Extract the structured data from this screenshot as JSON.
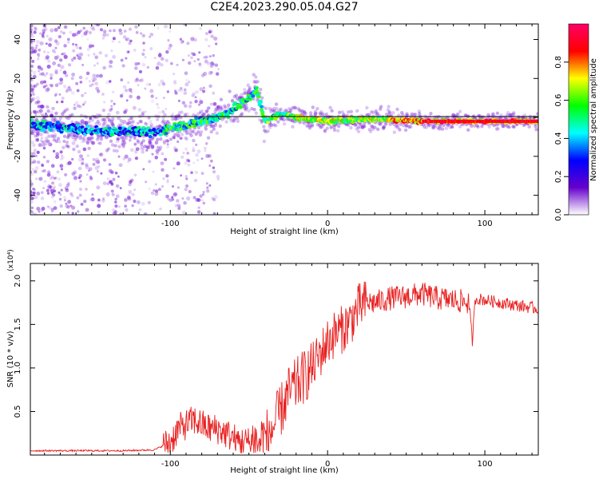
{
  "title": "C2E4.2023.290.05.04.G27",
  "chart_data": [
    {
      "type": "scatter",
      "subtype": "spectrogram",
      "xlabel": "Height of straight line (km)",
      "ylabel": "Frequency (Hz)",
      "xlim": [
        -189,
        134
      ],
      "ylim": [
        -50,
        48
      ],
      "xticks": [
        -100,
        0,
        100
      ],
      "yticks": [
        -40,
        -20,
        0,
        20,
        40
      ],
      "grid": false,
      "colorbar": {
        "label": "Normalized spectral amplitude",
        "range": [
          0,
          1
        ],
        "ticks": [
          "0.0",
          "0.2",
          "0.4",
          "0.6",
          "0.8"
        ],
        "colormap": "rainbow",
        "colors": [
          "#ffffff",
          "#6600cc",
          "#0000ff",
          "#00ffff",
          "#00ff00",
          "#ffff00",
          "#ff0000",
          "#ff0066"
        ]
      },
      "trace": {
        "x": [
          -189,
          -170,
          -150,
          -130,
          -110,
          -100,
          -90,
          -80,
          -70,
          -60,
          -50,
          -45,
          -40,
          -35,
          -30,
          -25,
          -20,
          -10,
          0,
          20,
          40,
          60,
          80,
          100,
          120,
          134
        ],
        "y": [
          -4,
          -5,
          -7,
          -7,
          -8,
          -5,
          -4,
          -2,
          0,
          4,
          10,
          14,
          -2,
          0,
          2,
          1,
          0,
          -1,
          -2,
          -1,
          -1,
          -2,
          -2,
          -2,
          -2,
          -2
        ]
      }
    },
    {
      "type": "line",
      "xlabel": "Height of straight line (km)",
      "ylabel": "SNR (10 * v/v)",
      "multiplier": "(x10⁴)",
      "xlim": [
        -189,
        134
      ],
      "ylim": [
        0,
        2.2
      ],
      "xticks": [
        -100,
        0,
        100
      ],
      "yticks": [
        0.5,
        1.0,
        1.5,
        2.0
      ],
      "ytick_labels": [
        "0.5",
        "1.0",
        "1.5",
        "2.0"
      ],
      "color": "#e82020",
      "series": [
        {
          "x": [
            -189,
            -160,
            -130,
            -110,
            -100,
            -95,
            -90,
            -85,
            -80,
            -75,
            -70,
            -65,
            -60,
            -55,
            -50,
            -45,
            -40,
            -35,
            -30,
            -25,
            -20,
            -15,
            -10,
            -5,
            0,
            5,
            10,
            15,
            20,
            25,
            30,
            40,
            50,
            60,
            70,
            80,
            90,
            92,
            94,
            100,
            110,
            120,
            134
          ],
          "y": [
            0.05,
            0.05,
            0.05,
            0.06,
            0.15,
            0.3,
            0.35,
            0.4,
            0.35,
            0.3,
            0.3,
            0.25,
            0.2,
            0.15,
            0.15,
            0.15,
            0.2,
            0.3,
            0.5,
            0.7,
            0.8,
            0.9,
            1.0,
            1.15,
            1.3,
            1.4,
            1.45,
            1.55,
            1.7,
            1.75,
            1.75,
            1.8,
            1.82,
            1.85,
            1.8,
            1.78,
            1.75,
            1.3,
            1.8,
            1.78,
            1.75,
            1.72,
            1.68
          ]
        }
      ]
    }
  ]
}
